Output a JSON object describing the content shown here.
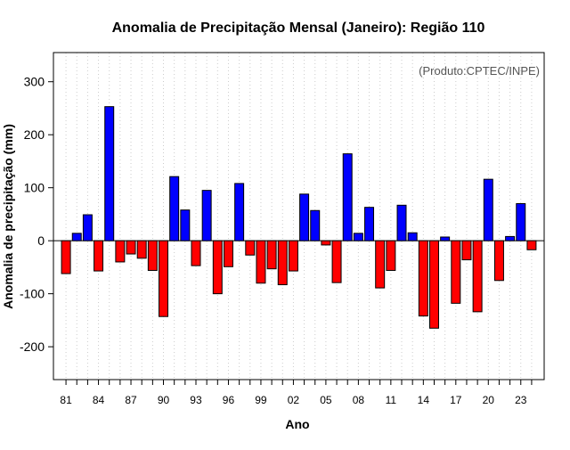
{
  "chart_data": {
    "type": "bar",
    "title": "Anomalia de Precipitação Mensal (Janeiro): Região 110",
    "xlabel": "Ano",
    "ylabel": "Anomalia de precipitação (mm)",
    "annotation": "(Produto:CPTEC/INPE)",
    "ylim": [
      -262,
      355
    ],
    "yticks": [
      -200,
      -100,
      0,
      100,
      200,
      300
    ],
    "ytick_labels": [
      "-200",
      "-100",
      "0",
      "100",
      "200",
      "300"
    ],
    "xtick_labels": [
      {
        "year": 1981,
        "label": "81"
      },
      {
        "year": 1984,
        "label": "84"
      },
      {
        "year": 1987,
        "label": "87"
      },
      {
        "year": 1990,
        "label": "90"
      },
      {
        "year": 1993,
        "label": "93"
      },
      {
        "year": 1996,
        "label": "96"
      },
      {
        "year": 1999,
        "label": "99"
      },
      {
        "year": 2002,
        "label": "02"
      },
      {
        "year": 2005,
        "label": "05"
      },
      {
        "year": 2008,
        "label": "08"
      },
      {
        "year": 2011,
        "label": "11"
      },
      {
        "year": 2014,
        "label": "14"
      },
      {
        "year": 2017,
        "label": "17"
      },
      {
        "year": 2020,
        "label": "20"
      },
      {
        "year": 2023,
        "label": "23"
      }
    ],
    "grid": "vertical dotted",
    "colors": {
      "positive": "#0000ff",
      "negative": "#ff0000",
      "grid": "#cccccc",
      "zero_line": "#000000"
    },
    "categories": [
      1981,
      1982,
      1983,
      1984,
      1985,
      1986,
      1987,
      1988,
      1989,
      1990,
      1991,
      1992,
      1993,
      1994,
      1995,
      1996,
      1997,
      1998,
      1999,
      2000,
      2001,
      2002,
      2003,
      2004,
      2005,
      2006,
      2007,
      2008,
      2009,
      2010,
      2011,
      2012,
      2013,
      2014,
      2015,
      2016,
      2017,
      2018,
      2019,
      2020,
      2021,
      2022,
      2023,
      2024
    ],
    "values": [
      -62,
      14,
      49,
      -57,
      253,
      -40,
      -25,
      -33,
      -56,
      -143,
      121,
      58,
      -47,
      95,
      -100,
      -49,
      108,
      -27,
      -80,
      -53,
      -83,
      -57,
      88,
      57,
      -8,
      -79,
      164,
      14,
      63,
      -89,
      -56,
      67,
      15,
      -142,
      -165,
      7,
      -118,
      -36,
      -134,
      116,
      -75,
      8,
      70,
      -17
    ]
  }
}
